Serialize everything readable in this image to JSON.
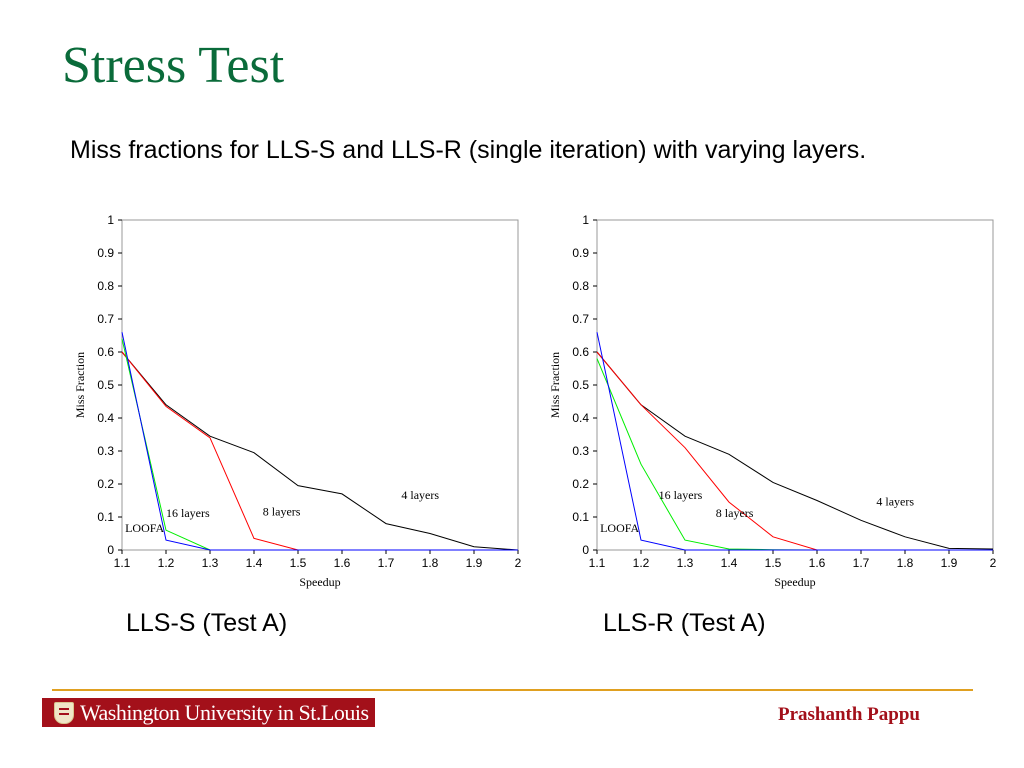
{
  "slide": {
    "title": "Stress Test",
    "subtitle": "Miss fractions for LLS-S and LLS-R (single iteration) with varying layers."
  },
  "footer": {
    "logo_text": "Washington University in St.Louis",
    "author": "Prashanth Pappu"
  },
  "colors": {
    "title": "#0a6b3a",
    "footer_rule": "#e0a020",
    "brand_red": "#a3101a"
  },
  "chart_data": [
    {
      "type": "line",
      "caption": "LLS-S (Test A)",
      "xlabel": "Speedup",
      "ylabel": "Miss Fraction",
      "xlim": [
        1.1,
        2
      ],
      "ylim": [
        0,
        1
      ],
      "x_ticks": [
        "1.1",
        "1.2",
        "1.3",
        "1.4",
        "1.5",
        "1.6",
        "1.7",
        "1.8",
        "1.9",
        "2"
      ],
      "y_ticks": [
        "0",
        "0.1",
        "0.2",
        "0.3",
        "0.4",
        "0.5",
        "0.6",
        "0.7",
        "0.8",
        "0.9",
        "1"
      ],
      "grid": false,
      "series": [
        {
          "color": "#000000",
          "x": [
            1.1,
            1.2,
            1.3,
            1.4,
            1.5,
            1.6,
            1.7,
            1.8,
            1.9,
            2.0
          ],
          "y": [
            0.6,
            0.44,
            0.345,
            0.295,
            0.195,
            0.17,
            0.08,
            0.05,
            0.01,
            0.0
          ]
        },
        {
          "color": "#ff0000",
          "x": [
            1.1,
            1.2,
            1.3,
            1.4,
            1.5,
            1.6,
            1.7,
            1.8,
            1.9,
            2.0
          ],
          "y": [
            0.6,
            0.435,
            0.34,
            0.035,
            0.0,
            0.0,
            0.0,
            0.0,
            0.0,
            0.0
          ]
        },
        {
          "color": "#00ee00",
          "x": [
            1.1,
            1.2,
            1.3,
            1.4,
            1.5,
            1.6,
            1.7,
            1.8,
            1.9,
            2.0
          ],
          "y": [
            0.64,
            0.06,
            0.0,
            0.0,
            0.0,
            0.0,
            0.0,
            0.0,
            0.0,
            0.0
          ]
        },
        {
          "color": "#0000ff",
          "x": [
            1.1,
            1.2,
            1.3,
            1.4,
            1.5,
            1.6,
            1.7,
            1.8,
            1.9,
            2.0
          ],
          "y": [
            0.66,
            0.03,
            0.0,
            0.0,
            0.0,
            0.0,
            0.0,
            0.0,
            0.0,
            0.0
          ]
        }
      ],
      "annotations": [
        {
          "text": "4 layers",
          "x": 1.735,
          "y": 0.155
        },
        {
          "text": "8 layers",
          "x": 1.42,
          "y": 0.105
        },
        {
          "text": "16 layers",
          "x": 1.2,
          "y": 0.1
        },
        {
          "text": "LOOFA",
          "x": 1.107,
          "y": 0.055
        }
      ]
    },
    {
      "type": "line",
      "caption": "LLS-R (Test A)",
      "xlabel": "Speedup",
      "ylabel": "Miss Fraction",
      "xlim": [
        1.1,
        2
      ],
      "ylim": [
        0,
        1
      ],
      "x_ticks": [
        "1.1",
        "1.2",
        "1.3",
        "1.4",
        "1.5",
        "1.6",
        "1.7",
        "1.8",
        "1.9",
        "2"
      ],
      "y_ticks": [
        "0",
        "0.1",
        "0.2",
        "0.3",
        "0.4",
        "0.5",
        "0.6",
        "0.7",
        "0.8",
        "0.9",
        "1"
      ],
      "grid": false,
      "series": [
        {
          "color": "#000000",
          "x": [
            1.1,
            1.2,
            1.3,
            1.4,
            1.5,
            1.6,
            1.7,
            1.8,
            1.9,
            2.0
          ],
          "y": [
            0.6,
            0.44,
            0.345,
            0.29,
            0.205,
            0.15,
            0.09,
            0.04,
            0.005,
            0.003
          ]
        },
        {
          "color": "#ff0000",
          "x": [
            1.1,
            1.2,
            1.3,
            1.4,
            1.5,
            1.6,
            1.7,
            1.8,
            1.9,
            2.0
          ],
          "y": [
            0.6,
            0.44,
            0.31,
            0.145,
            0.04,
            0.0,
            0.0,
            0.0,
            0.0,
            0.0
          ]
        },
        {
          "color": "#00ee00",
          "x": [
            1.1,
            1.2,
            1.3,
            1.4,
            1.5,
            1.6,
            1.7,
            1.8,
            1.9,
            2.0
          ],
          "y": [
            0.58,
            0.26,
            0.03,
            0.003,
            0.001,
            0.0,
            0.0,
            0.0,
            0.0,
            0.0
          ]
        },
        {
          "color": "#0000ff",
          "x": [
            1.1,
            1.2,
            1.3,
            1.4,
            1.5,
            1.6,
            1.7,
            1.8,
            1.9,
            2.0
          ],
          "y": [
            0.66,
            0.03,
            0.0,
            0.0,
            0.0,
            0.0,
            0.0,
            0.0,
            0.0,
            0.0
          ]
        }
      ],
      "annotations": [
        {
          "text": "4 layers",
          "x": 1.735,
          "y": 0.135
        },
        {
          "text": "8 layers",
          "x": 1.37,
          "y": 0.1
        },
        {
          "text": "16 layers",
          "x": 1.24,
          "y": 0.155
        },
        {
          "text": "LOOFA",
          "x": 1.107,
          "y": 0.055
        }
      ]
    }
  ]
}
